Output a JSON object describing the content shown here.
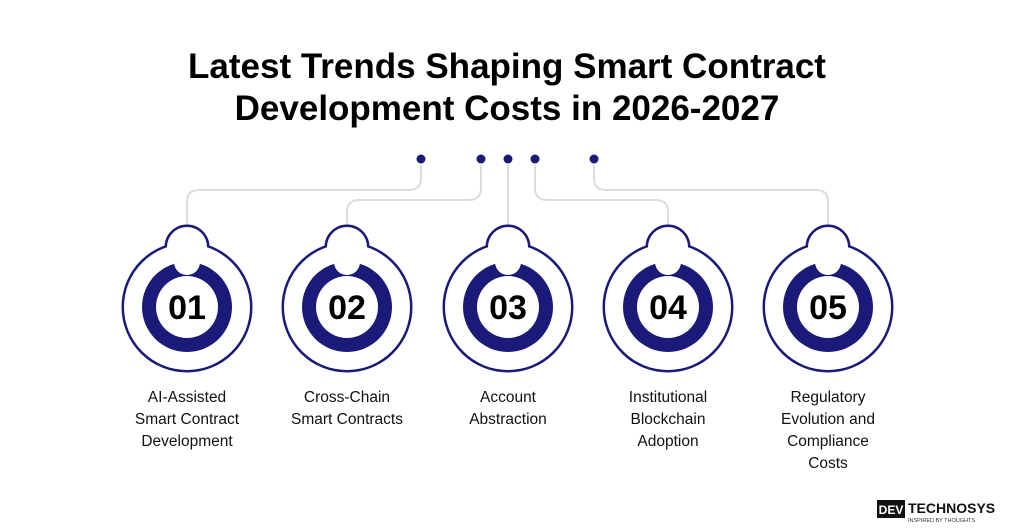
{
  "header": {
    "title_lines": [
      "Latest Trends Shaping Smart Contract",
      "Development Costs in 2026-2027"
    ]
  },
  "items": [
    {
      "number": "01",
      "label_lines": [
        "AI-Assisted",
        "Smart Contract",
        "Development"
      ]
    },
    {
      "number": "02",
      "label_lines": [
        "Cross-Chain",
        "Smart Contracts"
      ]
    },
    {
      "number": "03",
      "label_lines": [
        "Account",
        "Abstraction"
      ]
    },
    {
      "number": "04",
      "label_lines": [
        "Institutional",
        "Blockchain",
        "Adoption"
      ]
    },
    {
      "number": "05",
      "label_lines": [
        "Regulatory",
        "Evolution and",
        "Compliance",
        "Costs"
      ]
    }
  ],
  "logo": {
    "left": "DEV",
    "right": "TECHNOSYS",
    "tagline": "INSPIRED BY THOUGHTS"
  }
}
